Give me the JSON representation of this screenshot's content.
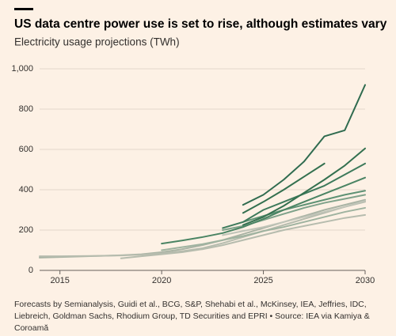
{
  "chart_data": {
    "type": "line",
    "title": "US data centre power use is set to rise, although estimates vary",
    "subtitle": "Electricity usage projections (TWh)",
    "source": "Forecasts by Semianalysis, Guidi et al., BCG, S&P, Shehabi et al., McKinsey, IEA, Jeffries, IDC, Liebreich, Goldman Sachs, Rhodium Group, TD Securities and EPRI • Source: IEA via Kamiya & Coroamă",
    "x": [
      2014,
      2015,
      2016,
      2017,
      2018,
      2019,
      2020,
      2021,
      2022,
      2023,
      2024,
      2025,
      2026,
      2027,
      2028,
      2029,
      2030
    ],
    "xlim": [
      2014,
      2030
    ],
    "xticks": [
      2015,
      2020,
      2025,
      2030
    ],
    "ylim": [
      0,
      1000
    ],
    "yticks": [
      0,
      200,
      400,
      600,
      800,
      {
        "value": 1000,
        "label": "1,000"
      }
    ],
    "grid": true,
    "series": [
      {
        "color": "#a9b3a4",
        "values": [
          63,
          66,
          69,
          72,
          75,
          80,
          90,
          105,
          125,
          150,
          180,
          210,
          240,
          270,
          300,
          325,
          350
        ]
      },
      {
        "color": "#b6bcae",
        "values": [
          70,
          70,
          71,
          72,
          74,
          78,
          85,
          95,
          110,
          135,
          165,
          195,
          225,
          255,
          285,
          315,
          340
        ]
      },
      {
        "color": "#b6bcae",
        "values": [
          null,
          null,
          null,
          null,
          60,
          70,
          80,
          90,
          105,
          125,
          150,
          175,
          200,
          220,
          240,
          260,
          275
        ]
      },
      {
        "color": "#c0c4b8",
        "values": [
          null,
          null,
          null,
          null,
          null,
          null,
          null,
          null,
          null,
          175,
          195,
          215,
          240,
          265,
          290,
          315,
          345
        ]
      },
      {
        "color": "#9fb3a0",
        "values": [
          null,
          null,
          null,
          null,
          null,
          null,
          100,
          115,
          130,
          150,
          170,
          195,
          215,
          240,
          265,
          290,
          310
        ]
      },
      {
        "color": "#7fa28a",
        "values": [
          null,
          null,
          null,
          null,
          null,
          null,
          null,
          null,
          null,
          200,
          220,
          250,
          280,
          310,
          335,
          355,
          375
        ]
      },
      {
        "color": "#5e9274",
        "values": [
          null,
          null,
          null,
          null,
          null,
          null,
          null,
          null,
          null,
          null,
          240,
          270,
          300,
          325,
          350,
          375,
          395
        ]
      },
      {
        "color": "#4a8463",
        "values": [
          null,
          null,
          null,
          null,
          null,
          null,
          133,
          148,
          165,
          185,
          215,
          255,
          300,
          340,
          380,
          420,
          460
        ]
      },
      {
        "color": "#3d7a5b",
        "values": [
          null,
          null,
          null,
          null,
          null,
          null,
          null,
          null,
          null,
          210,
          240,
          300,
          340,
          380,
          420,
          475,
          530
        ]
      },
      {
        "color": "#33704f",
        "values": [
          null,
          null,
          null,
          null,
          null,
          null,
          null,
          null,
          null,
          null,
          225,
          265,
          320,
          385,
          450,
          520,
          605
        ]
      },
      {
        "color": "#33704f",
        "values": [
          null,
          null,
          null,
          null,
          null,
          null,
          null,
          null,
          null,
          null,
          285,
          340,
          400,
          465,
          530,
          null,
          null
        ]
      },
      {
        "color": "#2f6b4f",
        "values": [
          null,
          null,
          null,
          null,
          null,
          null,
          null,
          null,
          null,
          null,
          325,
          375,
          450,
          540,
          665,
          695,
          920
        ]
      }
    ]
  }
}
